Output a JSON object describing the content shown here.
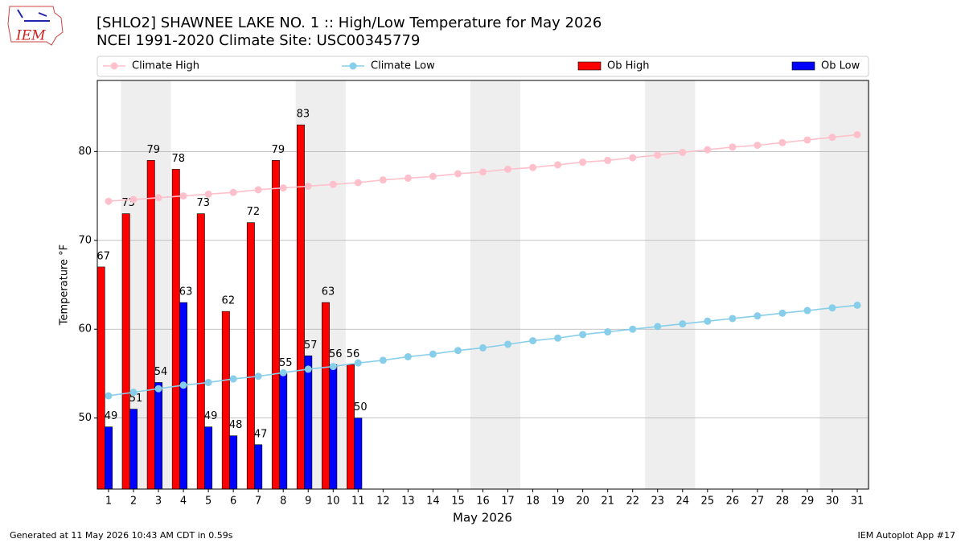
{
  "chart_data": {
    "type": "bar",
    "title": "[SHLO2] SHAWNEE LAKE NO. 1 :: High/Low Temperature for May 2026",
    "subtitle": "NCEI 1991-2020 Climate Site: USC00345779",
    "logo_text": "IEM",
    "xlabel": "May 2026",
    "ylabel": "Temperature °F",
    "footer_left": "Generated at 11 May 2026 10:43 AM CDT in 0.59s",
    "footer_right": "IEM Autoplot App #17",
    "x": [
      1,
      2,
      3,
      4,
      5,
      6,
      7,
      8,
      9,
      10,
      11,
      12,
      13,
      14,
      15,
      16,
      17,
      18,
      19,
      20,
      21,
      22,
      23,
      24,
      25,
      26,
      27,
      28,
      29,
      30,
      31
    ],
    "xlim": [
      0.55,
      31.45
    ],
    "xticks": [
      1,
      2,
      3,
      4,
      5,
      6,
      7,
      8,
      9,
      10,
      11,
      12,
      13,
      14,
      15,
      16,
      17,
      18,
      19,
      20,
      21,
      22,
      23,
      24,
      25,
      26,
      27,
      28,
      29,
      30,
      31
    ],
    "ylim": [
      42,
      88
    ],
    "yticks": [
      50,
      60,
      70,
      80
    ],
    "grid": true,
    "weekends": [
      [
        2,
        3
      ],
      [
        9,
        10
      ],
      [
        16,
        17
      ],
      [
        23,
        24
      ],
      [
        30,
        31
      ]
    ],
    "weekend_color": "#eeeeee",
    "series": [
      {
        "name": "Climate High",
        "type": "line",
        "color": "#ffc0cb",
        "values": [
          74.4,
          74.6,
          74.8,
          75.0,
          75.2,
          75.4,
          75.7,
          75.9,
          76.1,
          76.3,
          76.5,
          76.8,
          77.0,
          77.2,
          77.5,
          77.7,
          78.0,
          78.2,
          78.5,
          78.8,
          79.0,
          79.3,
          79.6,
          79.9,
          80.2,
          80.5,
          80.7,
          81.0,
          81.3,
          81.6,
          81.9
        ]
      },
      {
        "name": "Climate Low",
        "type": "line",
        "color": "#87ceeb",
        "values": [
          52.5,
          52.9,
          53.3,
          53.7,
          54.0,
          54.4,
          54.7,
          55.1,
          55.5,
          55.8,
          56.2,
          56.5,
          56.9,
          57.2,
          57.6,
          57.9,
          58.3,
          58.7,
          59.0,
          59.4,
          59.7,
          60.0,
          60.3,
          60.6,
          60.9,
          61.2,
          61.5,
          61.8,
          62.1,
          62.4,
          62.7
        ]
      },
      {
        "name": "Ob High",
        "type": "bar",
        "color": "#ff0000",
        "values": [
          67,
          73,
          79,
          78,
          73,
          62,
          72,
          79,
          83,
          63,
          56,
          null,
          null,
          null,
          null,
          null,
          null,
          null,
          null,
          null,
          null,
          null,
          null,
          null,
          null,
          null,
          null,
          null,
          null,
          null,
          null
        ]
      },
      {
        "name": "Ob Low",
        "type": "bar",
        "color": "#0000ff",
        "values": [
          49,
          51,
          54,
          63,
          49,
          48,
          47,
          55,
          57,
          56,
          50,
          null,
          null,
          null,
          null,
          null,
          null,
          null,
          null,
          null,
          null,
          null,
          null,
          null,
          null,
          null,
          null,
          null,
          null,
          null,
          null
        ]
      }
    ]
  }
}
